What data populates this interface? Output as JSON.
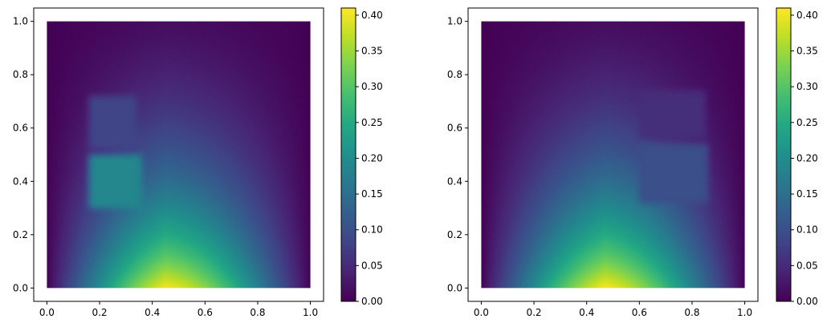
{
  "chart_data": [
    {
      "type": "heatmap",
      "xlim": [
        -0.05,
        1.05
      ],
      "ylim": [
        -0.05,
        1.05
      ],
      "xticks": [
        0.0,
        0.2,
        0.4,
        0.6,
        0.8,
        1.0
      ],
      "yticks": [
        0.0,
        0.2,
        0.4,
        0.6,
        0.8,
        1.0
      ],
      "xtick_labels": [
        "0.0",
        "0.2",
        "0.4",
        "0.6",
        "0.8",
        "1.0"
      ],
      "ytick_labels": [
        "0.0",
        "0.2",
        "0.4",
        "0.6",
        "0.8",
        "1.0"
      ],
      "colormap": "viridis",
      "colorbar": {
        "range": [
          0.0,
          0.41
        ],
        "ticks": [
          0.0,
          0.05,
          0.1,
          0.15,
          0.2,
          0.25,
          0.3,
          0.35,
          0.4
        ],
        "tick_labels": [
          "0.00",
          "0.05",
          "0.10",
          "0.15",
          "0.20",
          "0.25",
          "0.30",
          "0.35",
          "0.40"
        ]
      },
      "field": {
        "source": {
          "x": 0.45,
          "y": 0.0,
          "peak": 0.41
        },
        "rects": [
          {
            "x0": 0.16,
            "x1": 0.36,
            "y0": 0.3,
            "y1": 0.5,
            "value": 0.19
          },
          {
            "x0": 0.16,
            "x1": 0.34,
            "y0": 0.52,
            "y1": 0.72,
            "value": 0.085
          }
        ]
      }
    },
    {
      "type": "heatmap",
      "xlim": [
        -0.05,
        1.05
      ],
      "ylim": [
        -0.05,
        1.05
      ],
      "xticks": [
        0.0,
        0.2,
        0.4,
        0.6,
        0.8,
        1.0
      ],
      "yticks": [
        0.0,
        0.2,
        0.4,
        0.6,
        0.8,
        1.0
      ],
      "xtick_labels": [
        "0.0",
        "0.2",
        "0.4",
        "0.6",
        "0.8",
        "1.0"
      ],
      "ytick_labels": [
        "0.0",
        "0.2",
        "0.4",
        "0.6",
        "0.8",
        "1.0"
      ],
      "colormap": "viridis",
      "colorbar": {
        "range": [
          0.0,
          0.41
        ],
        "ticks": [
          0.0,
          0.05,
          0.1,
          0.15,
          0.2,
          0.25,
          0.3,
          0.35,
          0.4
        ],
        "tick_labels": [
          "0.00",
          "0.05",
          "0.10",
          "0.15",
          "0.20",
          "0.25",
          "0.30",
          "0.35",
          "0.40"
        ]
      },
      "field": {
        "source": {
          "x": 0.47,
          "y": 0.0,
          "peak": 0.41
        },
        "rects": [
          {
            "x0": 0.6,
            "x1": 0.86,
            "y0": 0.32,
            "y1": 0.54,
            "value": 0.1
          },
          {
            "x0": 0.6,
            "x1": 0.85,
            "y0": 0.56,
            "y1": 0.74,
            "value": 0.055
          }
        ]
      }
    }
  ]
}
